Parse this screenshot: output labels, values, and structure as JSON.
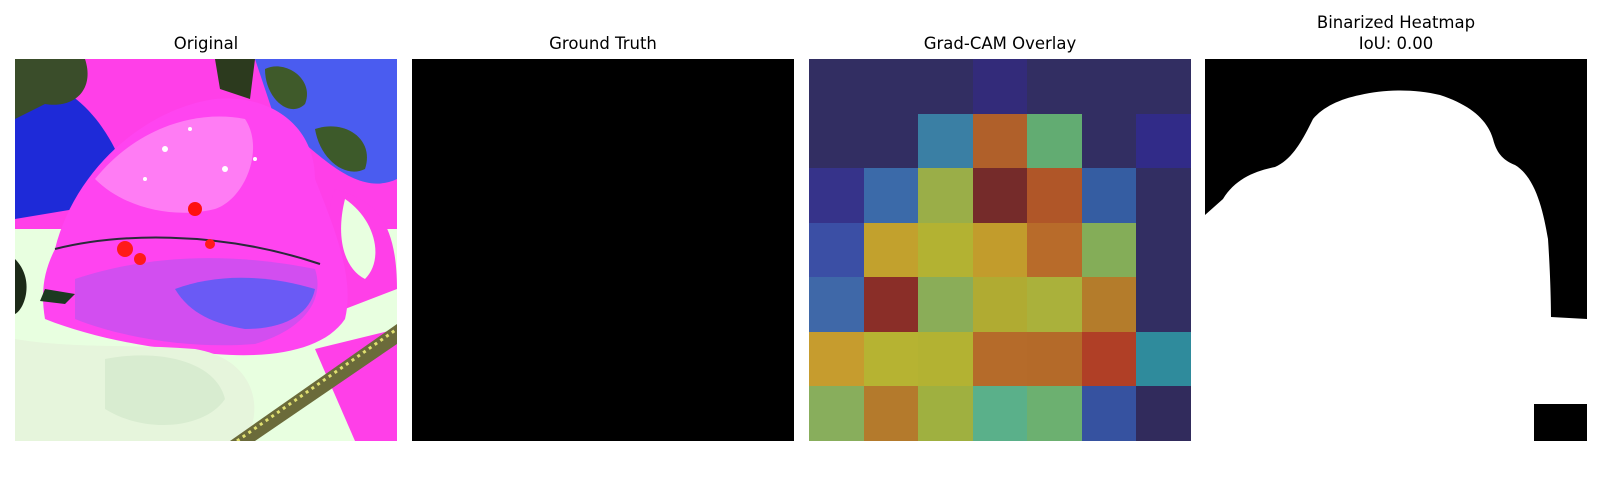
{
  "panels": [
    {
      "title": "Original"
    },
    {
      "title": "Ground Truth"
    },
    {
      "title": "Grad-CAM Overlay"
    },
    {
      "title": "Binarized Heatmap",
      "subtitle": "IoU: 0.00"
    }
  ],
  "gradcam_grid": [
    [
      "#322e62",
      "#322e62",
      "#322e62",
      "#332b7a",
      "#322e62",
      "#322e62",
      "#322e62"
    ],
    [
      "#322e62",
      "#322e62",
      "#3a7fa4",
      "#b0602a",
      "#62ac72",
      "#322e62",
      "#312b88"
    ],
    [
      "#36338a",
      "#3b6aa9",
      "#9aae48",
      "#752b2a",
      "#b05628",
      "#355da2",
      "#322e62"
    ],
    [
      "#3b4fa5",
      "#c2a12d",
      "#b3b232",
      "#c29c2c",
      "#b86b2a",
      "#84ad58",
      "#322e62"
    ],
    [
      "#3f68a8",
      "#8a2e28",
      "#8aad58",
      "#b0ab32",
      "#aab13b",
      "#b47c2b",
      "#322e62"
    ],
    [
      "#c69c2e",
      "#b6b332",
      "#b3b232",
      "#b56b2a",
      "#b46a29",
      "#b03f26",
      "#2f8b9c"
    ],
    [
      "#88ae5c",
      "#b47a2c",
      "#9fb040",
      "#5ab08a",
      "#6cb070",
      "#3652a0",
      "#312b5c"
    ]
  ],
  "colors": {
    "background": "#ffffff",
    "mask_background": "#000000",
    "mask_foreground": "#ffffff"
  }
}
